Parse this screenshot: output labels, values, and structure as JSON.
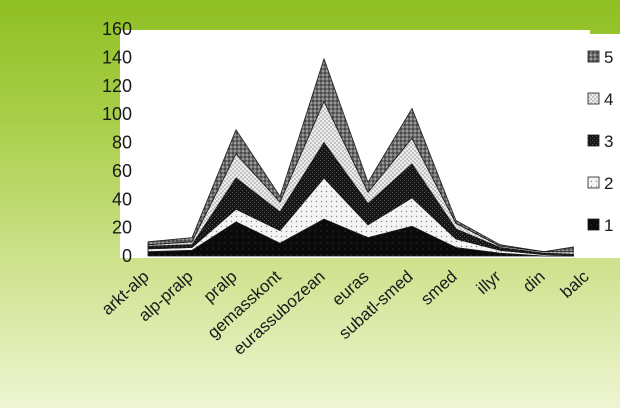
{
  "chart_data": {
    "type": "area",
    "stacked": true,
    "categories": [
      "arkt-alp",
      "alp-pralp",
      "pralp",
      "gemasskont",
      "eurassubozean",
      "euras",
      "subatl-smed",
      "smed",
      "illyr",
      "din",
      "balc"
    ],
    "ylim": [
      0,
      160
    ],
    "yticks": [
      0,
      20,
      40,
      60,
      80,
      100,
      120,
      140,
      160
    ],
    "series": [
      {
        "name": "1",
        "values": [
          3,
          4,
          24,
          9,
          26,
          13,
          21,
          6,
          2,
          0,
          0
        ],
        "pattern": "solid-black"
      },
      {
        "name": "2",
        "values": [
          2,
          2,
          9,
          9,
          29,
          9,
          20,
          6,
          2,
          1,
          0
        ],
        "pattern": "white-dotted"
      },
      {
        "name": "3",
        "values": [
          2,
          2,
          22,
          13,
          25,
          15,
          24,
          7,
          2,
          1,
          1
        ],
        "pattern": "dark-black"
      },
      {
        "name": "4",
        "values": [
          1,
          2,
          17,
          7,
          29,
          8,
          18,
          4,
          1,
          1,
          2
        ],
        "pattern": "light-grey"
      },
      {
        "name": "5",
        "values": [
          2,
          3,
          17,
          4,
          30,
          7,
          21,
          2,
          1,
          0,
          5
        ],
        "pattern": "mid-grey"
      }
    ],
    "grid": false,
    "legend_position": "right",
    "colors": {
      "background_top": "#8fbf22",
      "background_bottom": "#eef5d2",
      "plot_background": "#ffffff"
    }
  }
}
